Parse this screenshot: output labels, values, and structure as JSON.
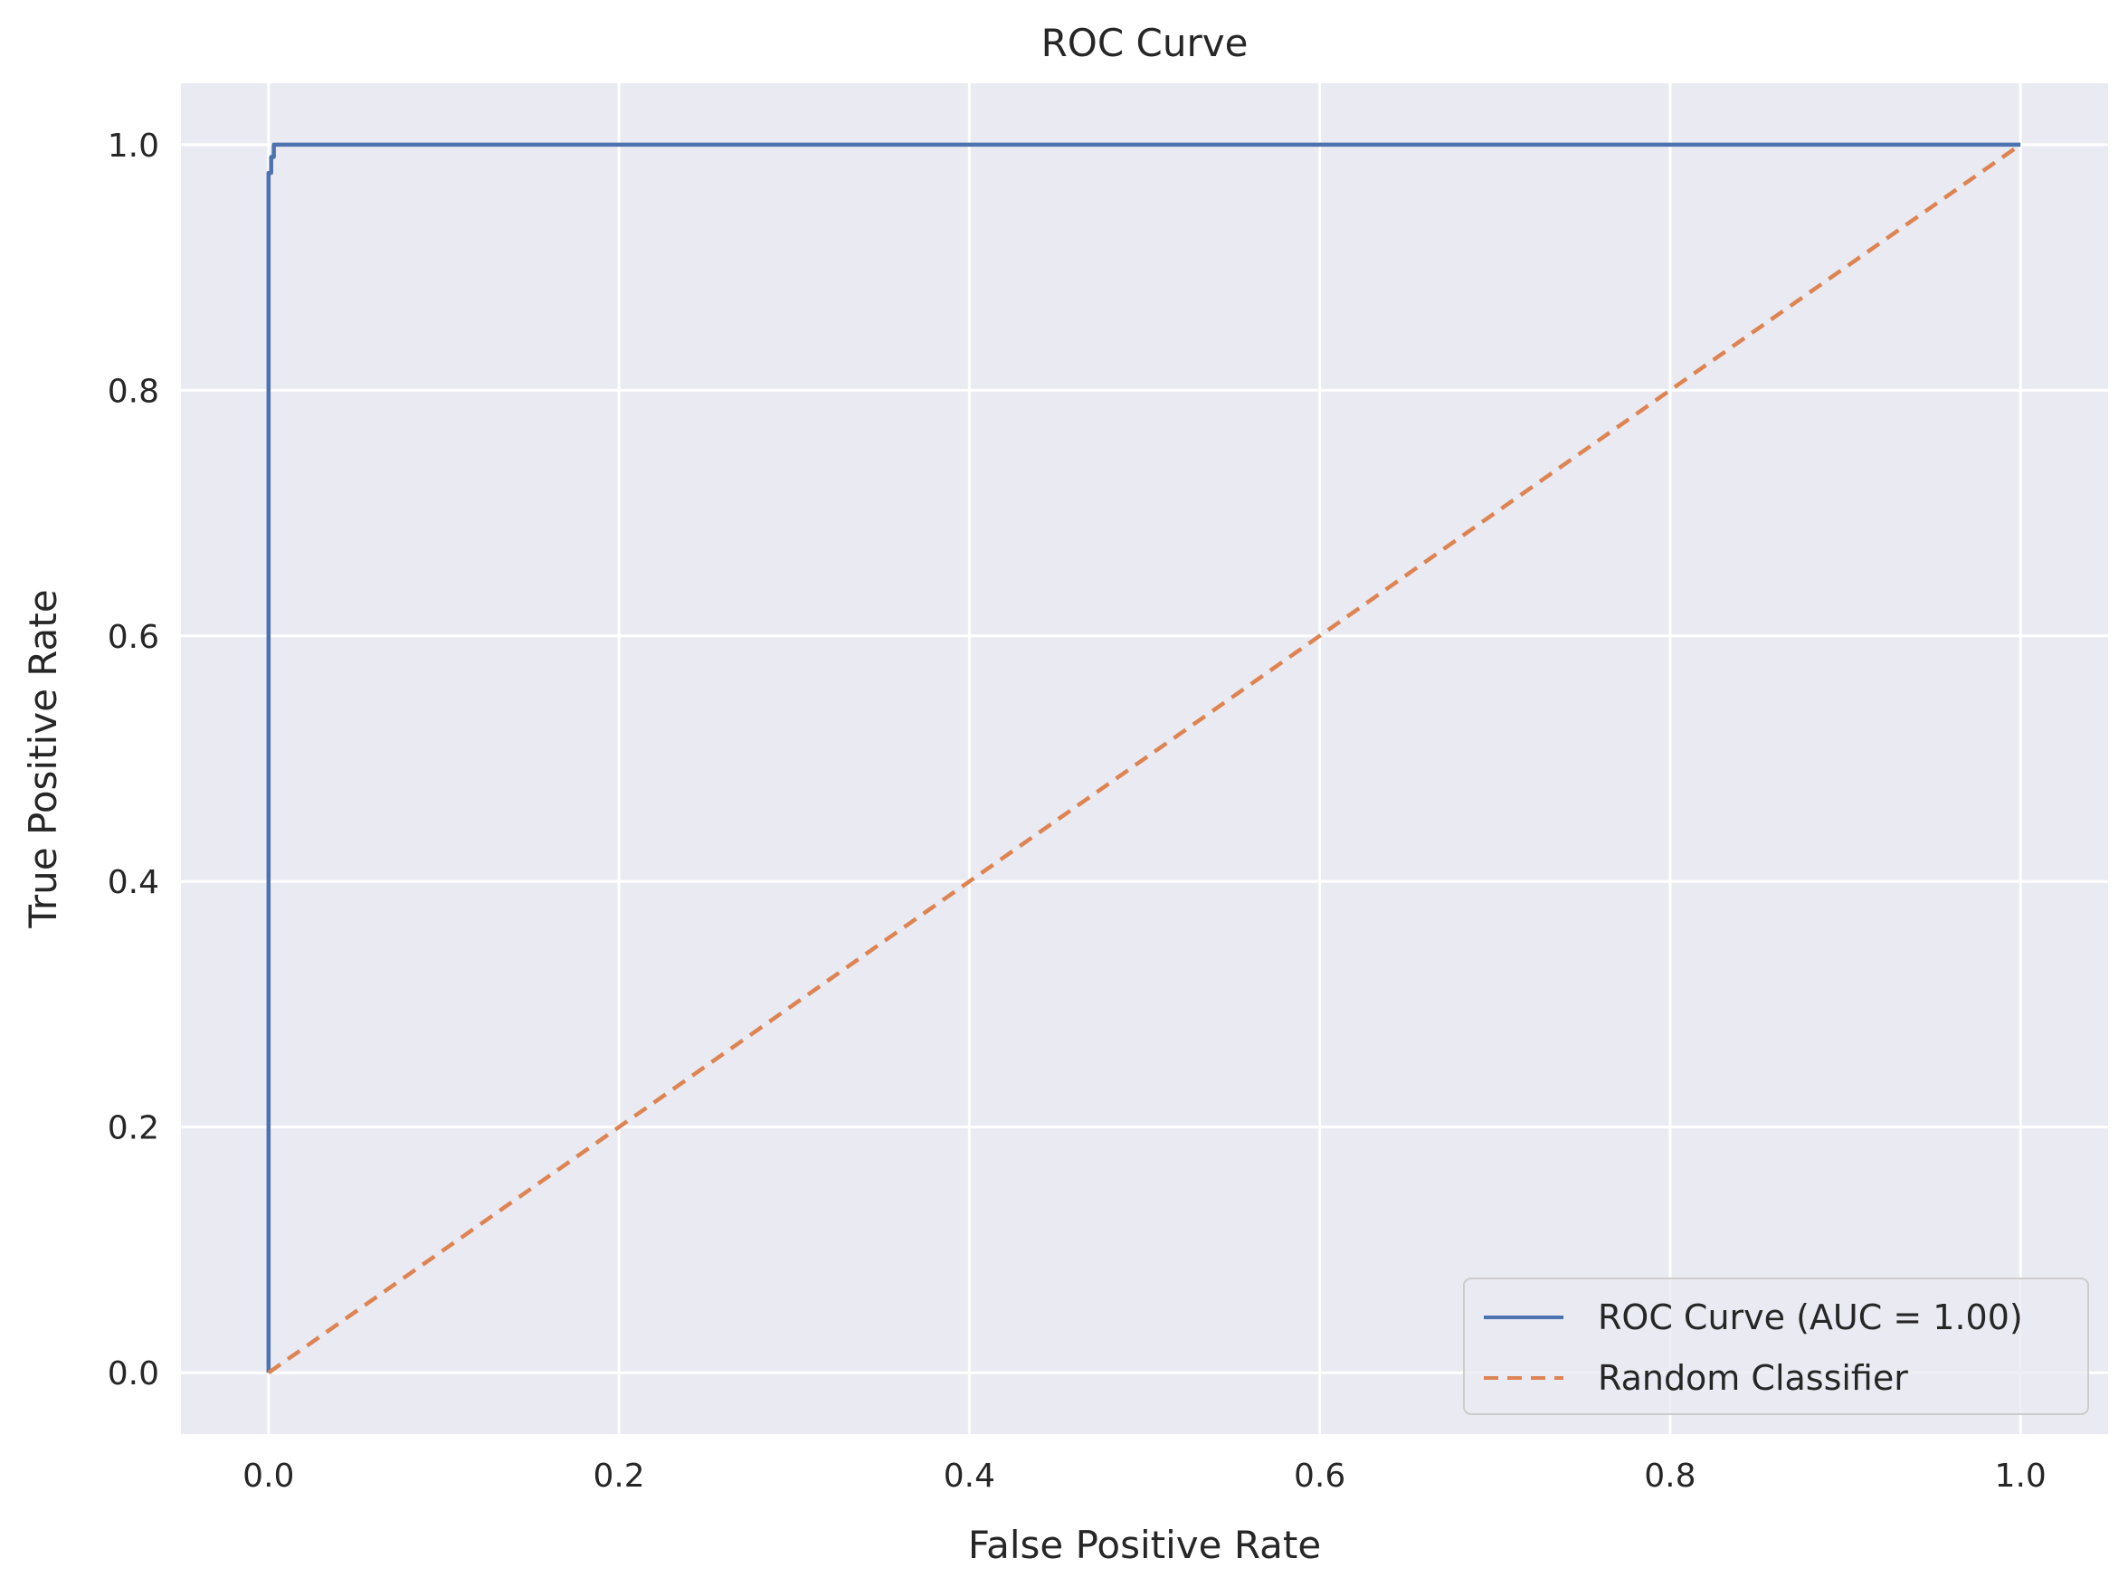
{
  "chart_data": {
    "type": "line",
    "title": "ROC Curve",
    "xlabel": "False Positive Rate",
    "ylabel": "True Positive Rate",
    "xlim": [
      -0.05,
      1.05
    ],
    "ylim": [
      -0.05,
      1.05
    ],
    "xticks": [
      0.0,
      0.2,
      0.4,
      0.6,
      0.8,
      1.0
    ],
    "yticks": [
      0.0,
      0.2,
      0.4,
      0.6,
      0.8,
      1.0
    ],
    "tick_labels_x": [
      "0.0",
      "0.2",
      "0.4",
      "0.6",
      "0.8",
      "1.0"
    ],
    "tick_labels_y": [
      "0.0",
      "0.2",
      "0.4",
      "0.6",
      "0.8",
      "1.0"
    ],
    "grid": true,
    "legend_position": "lower-right",
    "series": [
      {
        "name": "ROC Curve (AUC = 1.00)",
        "color": "#4C72B0",
        "style": "solid",
        "x": [
          0.0,
          0.0,
          0.0015,
          0.0015,
          0.003,
          0.003,
          1.0
        ],
        "y": [
          0.0,
          0.977,
          0.977,
          0.99,
          0.99,
          1.0,
          1.0
        ]
      },
      {
        "name": "Random Classifier",
        "color": "#DD8452",
        "style": "dashed",
        "x": [
          0.0,
          1.0
        ],
        "y": [
          0.0,
          1.0
        ]
      }
    ]
  }
}
